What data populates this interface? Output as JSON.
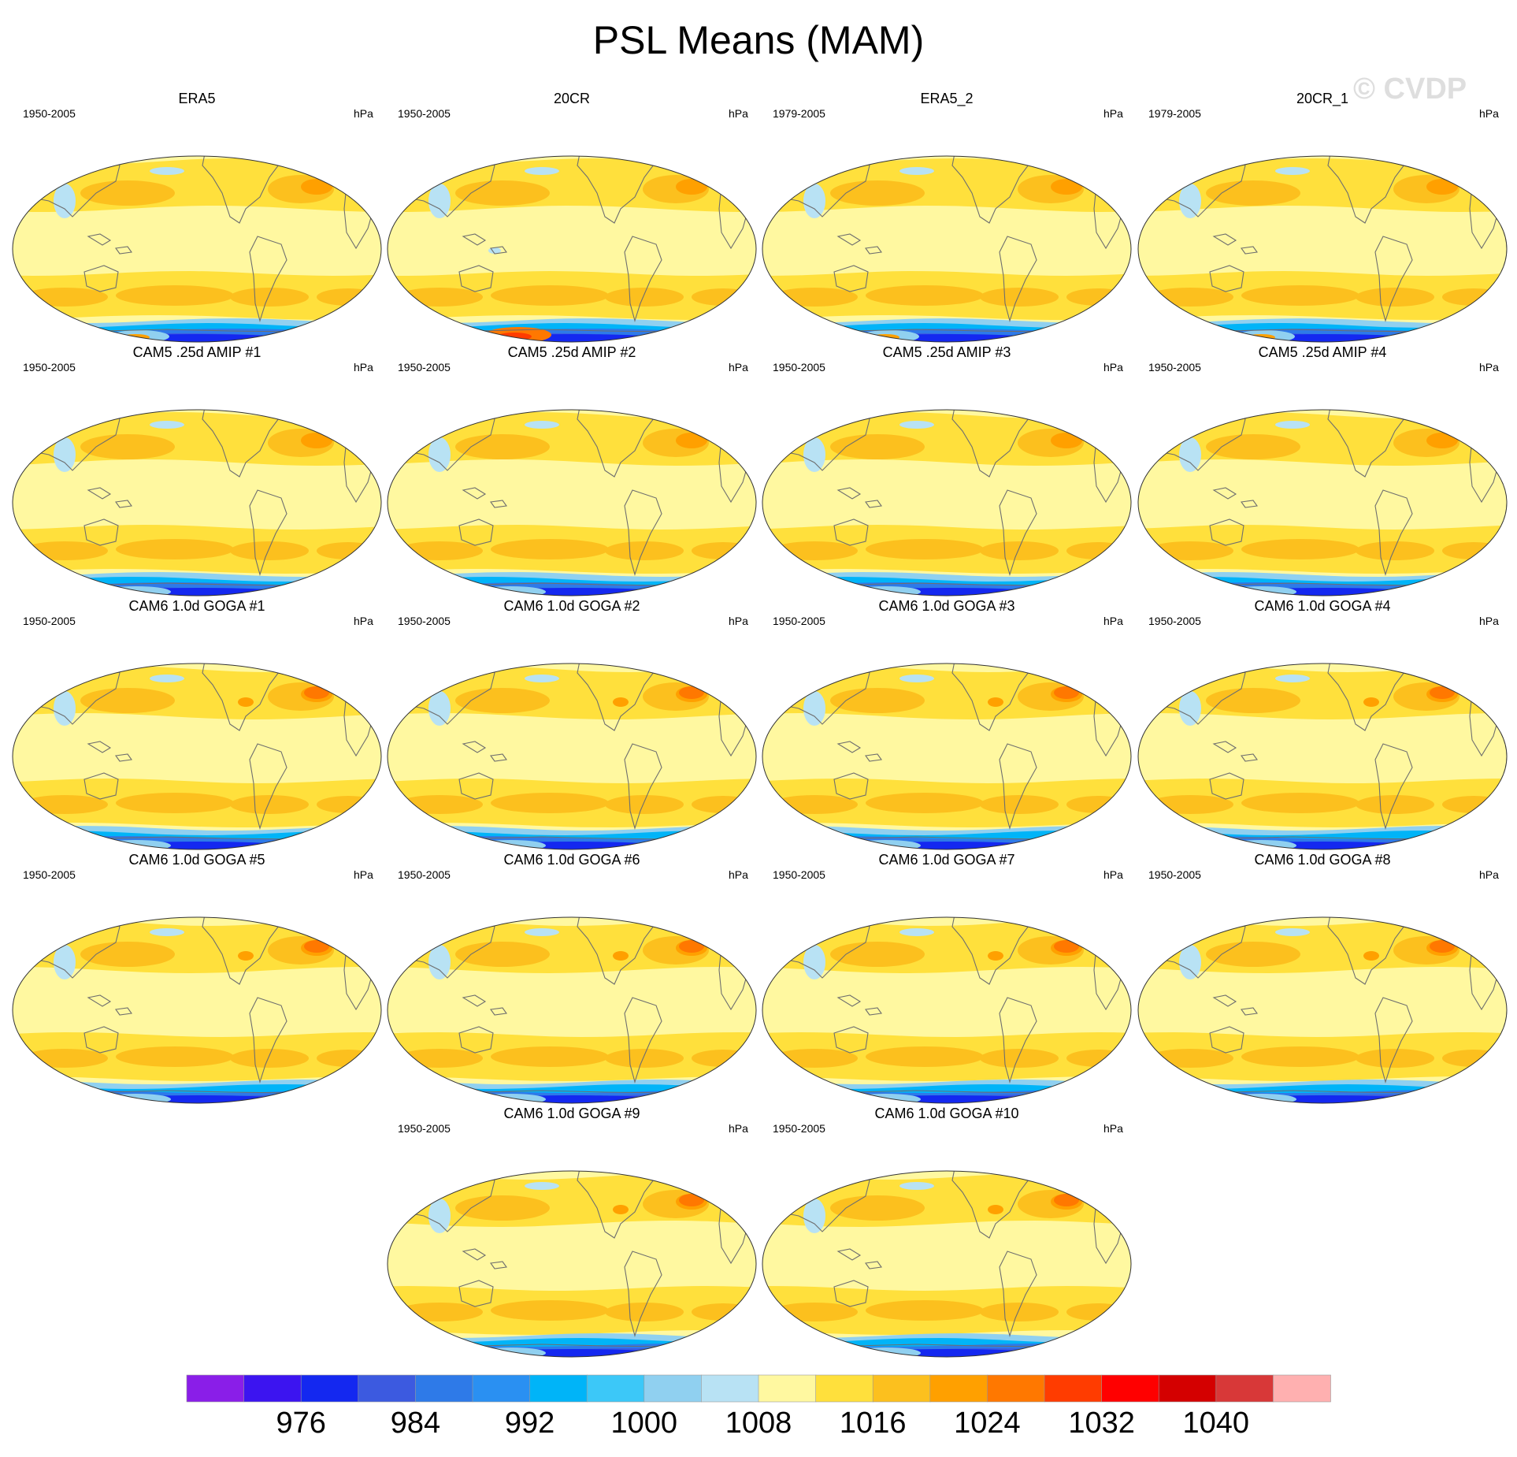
{
  "title": "PSL Means (MAM)",
  "watermark": "© CVDP",
  "units": "hPa",
  "panels": [
    {
      "name": "ERA5",
      "period": "1950-2005",
      "variant": 0
    },
    {
      "name": "20CR",
      "period": "1950-2005",
      "variant": 1
    },
    {
      "name": "ERA5_2",
      "period": "1979-2005",
      "variant": 0
    },
    {
      "name": "20CR_1",
      "period": "1979-2005",
      "variant": 0
    },
    {
      "name": "CAM5 .25d AMIP #1",
      "period": "1950-2005",
      "variant": 2
    },
    {
      "name": "CAM5 .25d AMIP #2",
      "period": "1950-2005",
      "variant": 2
    },
    {
      "name": "CAM5 .25d AMIP #3",
      "period": "1950-2005",
      "variant": 2
    },
    {
      "name": "CAM5 .25d AMIP #4",
      "period": "1950-2005",
      "variant": 2
    },
    {
      "name": "CAM6 1.0d GOGA #1",
      "period": "1950-2005",
      "variant": 3
    },
    {
      "name": "CAM6 1.0d GOGA #2",
      "period": "1950-2005",
      "variant": 3
    },
    {
      "name": "CAM6 1.0d GOGA #3",
      "period": "1950-2005",
      "variant": 3
    },
    {
      "name": "CAM6 1.0d GOGA #4",
      "period": "1950-2005",
      "variant": 3
    },
    {
      "name": "CAM6 1.0d GOGA #5",
      "period": "1950-2005",
      "variant": 3
    },
    {
      "name": "CAM6 1.0d GOGA #6",
      "period": "1950-2005",
      "variant": 3
    },
    {
      "name": "CAM6 1.0d GOGA #7",
      "period": "1950-2005",
      "variant": 3
    },
    {
      "name": "CAM6 1.0d GOGA #8",
      "period": "1950-2005",
      "variant": 3
    },
    {
      "name": "CAM6 1.0d GOGA #9",
      "period": "1950-2005",
      "variant": 3
    },
    {
      "name": "CAM6 1.0d GOGA #10",
      "period": "1950-2005",
      "variant": 3
    }
  ],
  "chart_data": {
    "type": "heatmap",
    "title": "PSL Means (MAM)",
    "projection": "Robinson-like global ellipse",
    "units": "hPa",
    "colorbar": {
      "levels": [
        972,
        976,
        980,
        984,
        988,
        992,
        996,
        1000,
        1004,
        1008,
        1012,
        1016,
        1020,
        1024,
        1028,
        1032,
        1036,
        1040,
        1044
      ],
      "tick_labels": [
        "976",
        "984",
        "992",
        "1000",
        "1008",
        "1016",
        "1024",
        "1032",
        "1040"
      ],
      "colors": [
        "#8a1ee8",
        "#3c14f0",
        "#1428f0",
        "#3c5ae0",
        "#2e7ae8",
        "#2a90f2",
        "#00b4f8",
        "#3cc8f8",
        "#90d0f0",
        "#b8e2f4",
        "#fff8a0",
        "#ffe03c",
        "#fcc01e",
        "#ffa000",
        "#ff7800",
        "#ff3c00",
        "#ff0000",
        "#d40000",
        "#d83838",
        "#ffb0b0"
      ]
    },
    "fields": {
      "south_polar_trough_hPa": 984,
      "subtropical_high_bands_hPa": 1020,
      "equatorial_band_hPa": 1012,
      "north_pacific_high_hPa": 1020,
      "north_atlantic_high_hPa": 1024
    }
  }
}
